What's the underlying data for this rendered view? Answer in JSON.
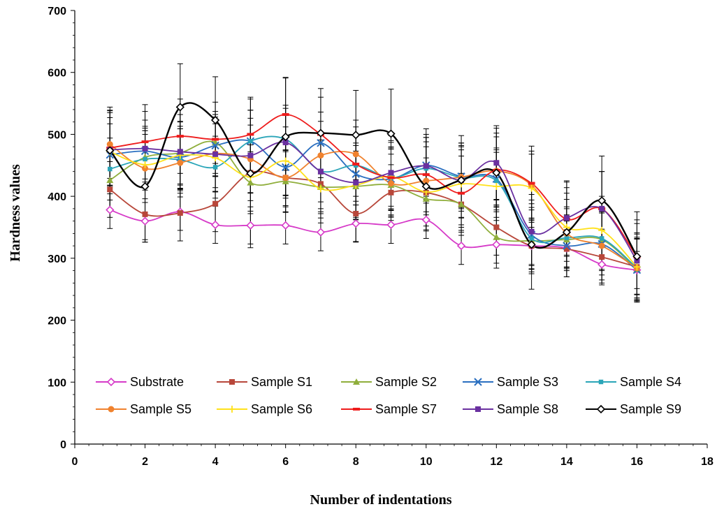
{
  "chart_data": {
    "type": "line",
    "title": "",
    "xlabel": "Number of indentations",
    "ylabel": "Hardness values",
    "xlim": [
      0,
      18
    ],
    "ylim": [
      0,
      700
    ],
    "x_ticks": [
      "0",
      "2",
      "4",
      "6",
      "8",
      "10",
      "12",
      "14",
      "16",
      "18"
    ],
    "y_ticks": [
      "0",
      "100",
      "200",
      "300",
      "400",
      "500",
      "600",
      "700"
    ],
    "grid": false,
    "smoothed": true,
    "error_bars": true,
    "legend_position": "bottom",
    "x": [
      1,
      2,
      3,
      4,
      5,
      6,
      7,
      8,
      9,
      10,
      11,
      12,
      13,
      14,
      15,
      16
    ],
    "series": [
      {
        "name": "Substrate",
        "color": "#d63ac8",
        "marker": "diamond-open",
        "values": [
          378,
          360,
          375,
          354,
          353,
          353,
          342,
          356,
          354,
          362,
          320,
          322,
          320,
          316,
          290,
          281
        ],
        "errors": [
          30,
          30,
          30,
          30,
          30,
          30,
          30,
          30,
          30,
          30,
          30,
          30,
          30,
          30,
          30,
          30
        ]
      },
      {
        "name": "Sample S1",
        "color": "#b8473a",
        "marker": "square",
        "values": [
          411,
          371,
          373,
          388,
          438,
          430,
          420,
          372,
          406,
          406,
          387,
          350,
          320,
          315,
          302,
          286
        ],
        "errors": [
          45,
          45,
          45,
          45,
          45,
          45,
          45,
          45,
          45,
          45,
          45,
          45,
          45,
          45,
          45,
          45
        ]
      },
      {
        "name": "Sample S2",
        "color": "#8fae3b",
        "marker": "triangle",
        "values": [
          426,
          463,
          470,
          487,
          422,
          424,
          415,
          416,
          418,
          396,
          387,
          334,
          328,
          330,
          330,
          282
        ],
        "errors": [
          50,
          50,
          50,
          50,
          50,
          50,
          50,
          50,
          50,
          50,
          50,
          50,
          50,
          50,
          50,
          50
        ]
      },
      {
        "name": "Sample S3",
        "color": "#2a6fc0",
        "marker": "x",
        "values": [
          467,
          473,
          463,
          482,
          489,
          447,
          486,
          436,
          428,
          450,
          432,
          428,
          338,
          320,
          323,
          281
        ],
        "errors": [
          50,
          50,
          50,
          50,
          50,
          50,
          50,
          50,
          50,
          50,
          50,
          50,
          50,
          50,
          50,
          50
        ]
      },
      {
        "name": "Sample S4",
        "color": "#2aa5b8",
        "marker": "square-small",
        "values": [
          444,
          460,
          459,
          447,
          489,
          492,
          441,
          450,
          430,
          445,
          430,
          425,
          332,
          333,
          332,
          284
        ],
        "errors": [
          50,
          50,
          50,
          50,
          50,
          50,
          50,
          50,
          50,
          50,
          50,
          50,
          50,
          50,
          50,
          50
        ]
      },
      {
        "name": "Sample S5",
        "color": "#f0822e",
        "marker": "circle",
        "values": [
          484,
          445,
          454,
          469,
          460,
          430,
          466,
          468,
          421,
          425,
          431,
          441,
          418,
          340,
          320,
          284
        ],
        "errors": [
          55,
          55,
          55,
          55,
          55,
          55,
          55,
          55,
          55,
          55,
          55,
          55,
          55,
          55,
          55,
          55
        ]
      },
      {
        "name": "Sample S6",
        "color": "#ffe11a",
        "marker": "plus",
        "values": [
          472,
          451,
          466,
          462,
          431,
          457,
          412,
          418,
          432,
          407,
          420,
          416,
          413,
          350,
          345,
          286
        ],
        "errors": [
          55,
          55,
          55,
          55,
          55,
          55,
          55,
          55,
          55,
          55,
          55,
          55,
          55,
          55,
          55,
          55
        ]
      },
      {
        "name": "Sample S7",
        "color": "#ee1c1c",
        "marker": "dash",
        "values": [
          478,
          488,
          497,
          492,
          500,
          532,
          500,
          452,
          430,
          435,
          405,
          442,
          421,
          363,
          380,
          302
        ],
        "errors": [
          60,
          60,
          60,
          60,
          60,
          60,
          60,
          60,
          60,
          60,
          60,
          60,
          60,
          60,
          60,
          60
        ]
      },
      {
        "name": "Sample S8",
        "color": "#6a30a0",
        "marker": "square",
        "values": [
          475,
          477,
          472,
          468,
          466,
          487,
          440,
          422,
          438,
          449,
          426,
          454,
          343,
          365,
          380,
          296
        ],
        "errors": [
          60,
          60,
          60,
          60,
          60,
          60,
          60,
          60,
          60,
          60,
          60,
          60,
          60,
          60,
          60,
          60
        ]
      },
      {
        "name": "Sample S9",
        "color": "#000000",
        "marker": "diamond-open",
        "values": [
          474,
          416,
          544,
          523,
          437,
          496,
          502,
          499,
          501,
          416,
          426,
          438,
          322,
          342,
          393,
          303
        ],
        "errors": [
          70,
          90,
          70,
          70,
          120,
          95,
          72,
          72,
          72,
          72,
          72,
          72,
          72,
          72,
          72,
          72
        ]
      }
    ]
  }
}
